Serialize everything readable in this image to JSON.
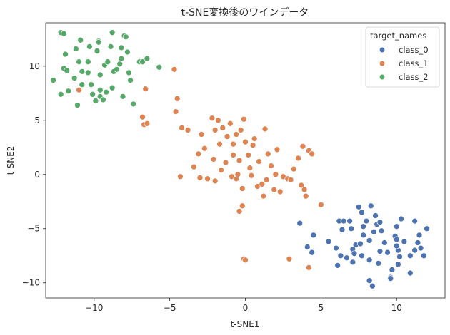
{
  "chart_data": {
    "type": "scatter",
    "title": "t-SNE変換後のワインデータ",
    "xlabel": "t-SNE1",
    "ylabel": "t-SNE2",
    "xlim": [
      -13.2,
      13.2
    ],
    "ylim": [
      -11.4,
      14.0
    ],
    "xticks": [
      -10,
      -5,
      0,
      5,
      10
    ],
    "yticks": [
      -10,
      -5,
      0,
      5,
      10
    ],
    "grid": false,
    "legend": {
      "title": "target_names",
      "placement": "top-right"
    },
    "series": [
      {
        "name": "class_0",
        "color": "#4c72b0",
        "points": [
          [
            3.6,
            -4.5
          ],
          [
            4.4,
            -7.2
          ],
          [
            4.5,
            -5.6
          ],
          [
            4.1,
            -6.7
          ],
          [
            6.0,
            -6.8
          ],
          [
            5.5,
            -6.2
          ],
          [
            6.2,
            -4.3
          ],
          [
            6.5,
            -4.3
          ],
          [
            6.4,
            -5.1
          ],
          [
            6.3,
            -7.5
          ],
          [
            6.1,
            -8.4
          ],
          [
            6.9,
            -4.3
          ],
          [
            7.0,
            -5.0
          ],
          [
            6.7,
            -7.7
          ],
          [
            7.3,
            -6.5
          ],
          [
            7.1,
            -6.9
          ],
          [
            7.2,
            -7.3
          ],
          [
            7.1,
            -8.1
          ],
          [
            7.6,
            -6.4
          ],
          [
            7.8,
            -5.6
          ],
          [
            7.7,
            -7.5
          ],
          [
            7.5,
            -3.0
          ],
          [
            7.7,
            -3.5
          ],
          [
            8.0,
            -4.3
          ],
          [
            7.8,
            -4.8
          ],
          [
            8.3,
            -2.9
          ],
          [
            8.2,
            -6.1
          ],
          [
            8.2,
            -7.9
          ],
          [
            8.2,
            -9.8
          ],
          [
            8.6,
            -3.8
          ],
          [
            8.7,
            -4.6
          ],
          [
            8.5,
            -5.3
          ],
          [
            8.4,
            -10.3
          ],
          [
            8.9,
            -4.4
          ],
          [
            8.9,
            -7.1
          ],
          [
            8.8,
            -8.2
          ],
          [
            9.0,
            -5.2
          ],
          [
            9.2,
            -6.3
          ],
          [
            9.4,
            -7.2
          ],
          [
            9.7,
            -8.8
          ],
          [
            9.6,
            -9.5
          ],
          [
            9.6,
            -9.6
          ],
          [
            9.9,
            -5.7
          ],
          [
            10.0,
            -4.8
          ],
          [
            10.0,
            -6.0
          ],
          [
            10.1,
            -7.0
          ],
          [
            10.2,
            -7.6
          ],
          [
            10.1,
            -8.3
          ],
          [
            10.3,
            -4.1
          ],
          [
            10.5,
            -6.2
          ],
          [
            10.9,
            -9.1
          ],
          [
            10.9,
            -7.5
          ],
          [
            11.2,
            -4.3
          ],
          [
            11.4,
            -6.3
          ],
          [
            11.5,
            -5.6
          ],
          [
            11.2,
            -7.0
          ],
          [
            11.6,
            -6.8
          ],
          [
            11.8,
            -7.5
          ],
          [
            12.0,
            -5.0
          ],
          [
            10.0,
            -6.6
          ]
        ]
      },
      {
        "name": "class_1",
        "color": "#dd8452",
        "points": [
          [
            -11.0,
            7.8
          ],
          [
            -6.8,
            5.3
          ],
          [
            -6.7,
            4.6
          ],
          [
            -6.6,
            7.9
          ],
          [
            -6.5,
            4.7
          ],
          [
            -4.7,
            9.7
          ],
          [
            -4.5,
            7.0
          ],
          [
            -4.6,
            5.8
          ],
          [
            -4.2,
            4.3
          ],
          [
            -4.3,
            -0.2
          ],
          [
            -3.8,
            4.1
          ],
          [
            -3.4,
            0.7
          ],
          [
            -3.1,
            1.9
          ],
          [
            -3.0,
            -0.3
          ],
          [
            -2.9,
            3.7
          ],
          [
            -2.7,
            2.4
          ],
          [
            -2.5,
            -0.4
          ],
          [
            -2.2,
            5.2
          ],
          [
            -2.1,
            1.4
          ],
          [
            -2.0,
            4.1
          ],
          [
            -2.0,
            -0.6
          ],
          [
            -1.8,
            5.0
          ],
          [
            -1.7,
            2.8
          ],
          [
            -1.6,
            0.4
          ],
          [
            -1.5,
            4.3
          ],
          [
            -1.3,
            1.1
          ],
          [
            -1.2,
            3.5
          ],
          [
            -1.0,
            4.7
          ],
          [
            -0.9,
            -0.2
          ],
          [
            -0.8,
            2.8
          ],
          [
            -0.8,
            1.8
          ],
          [
            -0.6,
            3.7
          ],
          [
            -0.6,
            -0.4
          ],
          [
            -0.4,
            -3.4
          ],
          [
            -0.4,
            1.3
          ],
          [
            -0.3,
            4.1
          ],
          [
            -0.2,
            -2.9
          ],
          [
            -0.2,
            -1.3
          ],
          [
            -0.1,
            5.1
          ],
          [
            -0.1,
            -7.8
          ],
          [
            0.0,
            -7.9
          ],
          [
            0.0,
            3.0
          ],
          [
            0.2,
            1.8
          ],
          [
            0.3,
            0.6
          ],
          [
            0.4,
            -0.1
          ],
          [
            0.5,
            2.7
          ],
          [
            0.6,
            3.3
          ],
          [
            0.8,
            -1.1
          ],
          [
            0.9,
            1.2
          ],
          [
            1.2,
            -2.0
          ],
          [
            1.4,
            -0.5
          ],
          [
            1.5,
            1.9
          ],
          [
            1.3,
            4.2
          ],
          [
            1.1,
            -0.9
          ],
          [
            1.7,
            0.8
          ],
          [
            1.9,
            -1.4
          ],
          [
            2.1,
            2.3
          ],
          [
            2.0,
            0.0
          ],
          [
            2.3,
            -1.6
          ],
          [
            2.5,
            -0.2
          ],
          [
            2.8,
            -0.4
          ],
          [
            3.0,
            -0.5
          ],
          [
            2.9,
            -7.8
          ],
          [
            3.2,
            0.5
          ],
          [
            3.5,
            1.5
          ],
          [
            3.7,
            -1.0
          ],
          [
            3.8,
            2.6
          ],
          [
            4.2,
            2.2
          ],
          [
            4.4,
            1.9
          ],
          [
            4.0,
            -2.0
          ],
          [
            4.2,
            -8.6
          ],
          [
            5.0,
            -2.8
          ],
          [
            3.9,
            -1.4
          ],
          [
            -0.5,
            0.0
          ]
        ]
      },
      {
        "name": "class_2",
        "color": "#55a868",
        "points": [
          [
            -12.2,
            13.1
          ],
          [
            -12.0,
            13.0
          ],
          [
            -12.0,
            9.8
          ],
          [
            -12.2,
            7.4
          ],
          [
            -11.8,
            9.6
          ],
          [
            -11.9,
            11.1
          ],
          [
            -11.7,
            7.7
          ],
          [
            -11.3,
            8.9
          ],
          [
            -11.1,
            6.4
          ],
          [
            -11.2,
            11.6
          ],
          [
            -11.0,
            10.4
          ],
          [
            -10.8,
            8.3
          ],
          [
            -10.8,
            9.5
          ],
          [
            -10.4,
            9.4
          ],
          [
            -10.4,
            10.4
          ],
          [
            -10.3,
            11.8
          ],
          [
            -10.2,
            8.3
          ],
          [
            -10.1,
            7.4
          ],
          [
            -9.9,
            6.8
          ],
          [
            -9.7,
            12.3
          ],
          [
            -9.7,
            12.2
          ],
          [
            -9.6,
            7.2
          ],
          [
            -9.6,
            9.2
          ],
          [
            -9.4,
            6.9
          ],
          [
            -9.3,
            10.1
          ],
          [
            -9.2,
            7.6
          ],
          [
            -9.1,
            10.4
          ],
          [
            -8.9,
            11.8
          ],
          [
            -8.8,
            13.1
          ],
          [
            -8.7,
            9.5
          ],
          [
            -8.5,
            9.7
          ],
          [
            -8.3,
            10.2
          ],
          [
            -8.2,
            11.7
          ],
          [
            -8.0,
            12.8
          ],
          [
            -7.9,
            12.7
          ],
          [
            -7.8,
            11.3
          ],
          [
            -7.6,
            8.7
          ],
          [
            -7.4,
            6.5
          ],
          [
            -7.0,
            10.4
          ],
          [
            -6.8,
            10.4
          ],
          [
            -6.5,
            10.7
          ],
          [
            -5.7,
            9.9
          ],
          [
            -12.7,
            8.7
          ],
          [
            -9.6,
            7.8
          ],
          [
            -8.8,
            8.0
          ],
          [
            -8.1,
            7.2
          ],
          [
            -9.8,
            11.4
          ],
          [
            -10.9,
            12.4
          ],
          [
            -7.7,
            9.4
          ],
          [
            -8.2,
            10.7
          ]
        ]
      }
    ]
  }
}
